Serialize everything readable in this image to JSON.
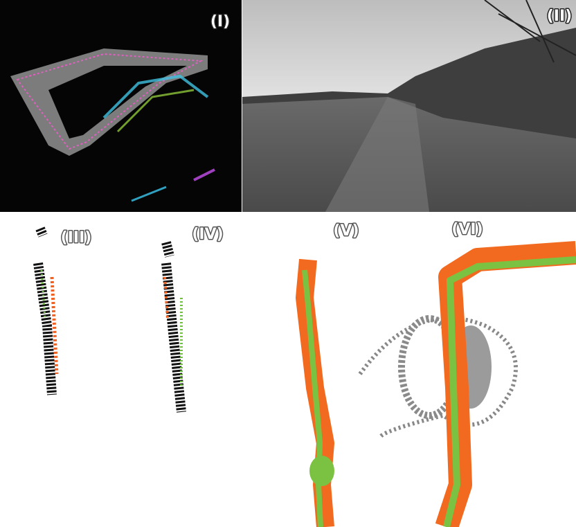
{
  "panels": [
    {
      "label": "(I)"
    },
    {
      "label": "(II)"
    },
    {
      "label": "(III)"
    },
    {
      "label": "(IV)"
    },
    {
      "label": "(V)"
    },
    {
      "label": "(VI)"
    }
  ]
}
